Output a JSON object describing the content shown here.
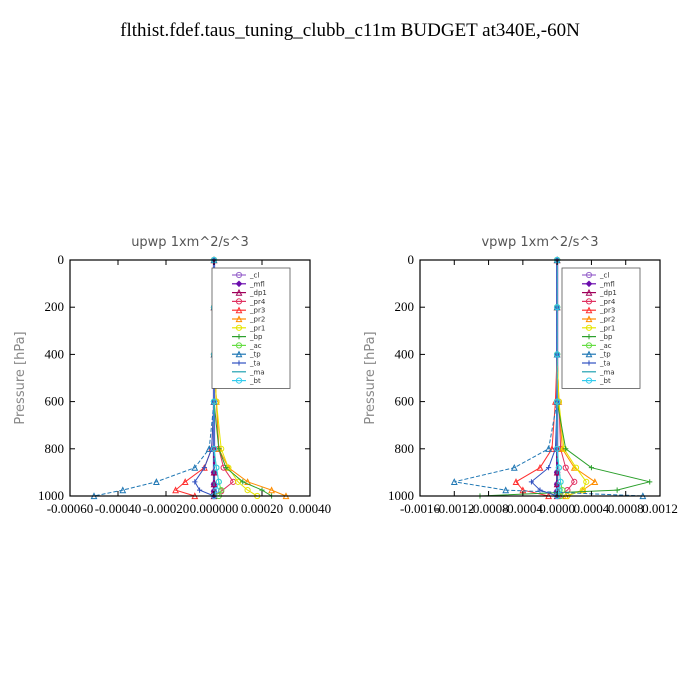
{
  "page_title": "flthist.fdef.taus_tuning_clubb_c11m  BUDGET at340E,-60N",
  "chart_data": [
    {
      "type": "line",
      "title": "upwp   1xm^2/s^3",
      "ylabel": "Pressure [hPa]",
      "xlim": [
        -0.0006,
        0.0004
      ],
      "ylim": [
        1000,
        0
      ],
      "x_ticks": [
        "-0.00060",
        "-0.00040",
        "-0.00020",
        "0.000000",
        "0.00020",
        "0.00040"
      ],
      "x_tick_values": [
        -0.0006,
        -0.0004,
        -0.0002,
        0.0,
        0.0002,
        0.0004
      ],
      "y_ticks": [
        "0",
        "200",
        "400",
        "600",
        "800",
        "1000"
      ],
      "y_tick_values": [
        0,
        200,
        400,
        600,
        800,
        1000
      ],
      "legend_position": "top-right",
      "series": [
        {
          "name": "_cl",
          "color": "#9966cc",
          "marker": "circle",
          "x": [
            0,
            0,
            0,
            0,
            0,
            0,
            0,
            0,
            0
          ],
          "y": [
            0,
            200,
            400,
            600,
            800,
            900,
            950,
            980,
            1000
          ]
        },
        {
          "name": "_mfl",
          "color": "#6a0dad",
          "marker": "diamond",
          "x": [
            0,
            0,
            0,
            0,
            0,
            0,
            0,
            0,
            0
          ],
          "y": [
            0,
            200,
            400,
            600,
            800,
            900,
            950,
            980,
            1000
          ]
        },
        {
          "name": "_dp1",
          "color": "#a0005a",
          "marker": "triangle",
          "x": [
            0,
            0,
            0,
            0,
            0,
            0,
            0,
            0,
            0
          ],
          "y": [
            0,
            200,
            400,
            600,
            800,
            900,
            950,
            980,
            1000
          ]
        },
        {
          "name": "_pr4",
          "color": "#e03060",
          "marker": "circle",
          "x": [
            0,
            0,
            0,
            1e-05,
            2e-05,
            4e-05,
            8e-05,
            3e-05,
            0
          ],
          "y": [
            0,
            200,
            400,
            600,
            800,
            880,
            940,
            980,
            1000
          ]
        },
        {
          "name": "_pr3",
          "color": "#ff3030",
          "marker": "triangle",
          "x": [
            0,
            0,
            0,
            0,
            -1e-05,
            -4e-05,
            -0.00012,
            -0.00016,
            -8e-05
          ],
          "y": [
            0,
            200,
            400,
            600,
            800,
            880,
            940,
            975,
            1000
          ]
        },
        {
          "name": "_pr2",
          "color": "#ff8c00",
          "marker": "triangle",
          "x": [
            0,
            0,
            0,
            1e-05,
            2e-05,
            6e-05,
            0.00014,
            0.00024,
            0.0003
          ],
          "y": [
            0,
            200,
            400,
            600,
            800,
            880,
            940,
            975,
            1000
          ]
        },
        {
          "name": "_pr1",
          "color": "#e6e600",
          "marker": "circle",
          "x": [
            0,
            0,
            0,
            1e-05,
            3e-05,
            6e-05,
            0.0001,
            0.00014,
            0.00018
          ],
          "y": [
            0,
            200,
            400,
            600,
            800,
            880,
            940,
            975,
            1000
          ]
        },
        {
          "name": "_bp",
          "color": "#2ca02c",
          "marker": "plus",
          "x": [
            0,
            0,
            0,
            0,
            2e-05,
            5e-05,
            0.00012,
            0.0002,
            0.00024
          ],
          "y": [
            0,
            200,
            400,
            600,
            800,
            880,
            940,
            975,
            1000
          ]
        },
        {
          "name": "_ac",
          "color": "#66dd44",
          "marker": "circle",
          "x": [
            0,
            0,
            0,
            0,
            0,
            1e-05,
            2e-05,
            3e-05,
            2e-05
          ],
          "y": [
            0,
            200,
            400,
            600,
            800,
            880,
            940,
            975,
            1000
          ]
        },
        {
          "name": "_tp",
          "color": "#1f77b4",
          "marker": "triangle",
          "x": [
            0,
            0,
            0,
            0,
            -2e-05,
            -8e-05,
            -0.00024,
            -0.00038,
            -0.0005
          ],
          "y": [
            0,
            200,
            400,
            600,
            800,
            880,
            940,
            975,
            1000
          ]
        },
        {
          "name": "_ta",
          "color": "#3050c0",
          "marker": "plus",
          "x": [
            0,
            0,
            0,
            0,
            -1e-05,
            -4e-05,
            -8e-05,
            -6e-05,
            0
          ],
          "y": [
            0,
            200,
            400,
            600,
            800,
            880,
            940,
            975,
            1000
          ]
        },
        {
          "name": "_ma",
          "color": "#20a0b0",
          "marker": "none",
          "x": [
            0,
            0,
            0,
            0,
            0,
            0,
            0,
            0,
            0
          ],
          "y": [
            0,
            200,
            400,
            600,
            800,
            880,
            940,
            975,
            1000
          ]
        },
        {
          "name": "_bt",
          "color": "#33ccee",
          "marker": "circle",
          "x": [
            0,
            0,
            0,
            0,
            0,
            1e-05,
            2e-05,
            1e-05,
            0
          ],
          "y": [
            0,
            200,
            400,
            600,
            800,
            880,
            940,
            975,
            1000
          ]
        }
      ]
    },
    {
      "type": "line",
      "title": "vpwp   1xm^2/s^3",
      "ylabel": "Pressure [hPa]",
      "xlim": [
        -0.0016,
        0.0012
      ],
      "ylim": [
        1000,
        0
      ],
      "x_ticks": [
        "-0.0016",
        "-0.0012",
        "-0.0008",
        "-0.0004",
        "0.0000",
        "0.0004",
        "0.0008",
        "0.0012"
      ],
      "x_tick_values": [
        -0.0016,
        -0.0012,
        -0.0008,
        -0.0004,
        0.0,
        0.0004,
        0.0008,
        0.0012
      ],
      "y_ticks": [
        "0",
        "200",
        "400",
        "600",
        "800",
        "1000"
      ],
      "y_tick_values": [
        0,
        200,
        400,
        600,
        800,
        1000
      ],
      "legend_position": "top-right",
      "series": [
        {
          "name": "_cl",
          "color": "#9966cc",
          "marker": "circle",
          "x": [
            0,
            0,
            0,
            0,
            0,
            0,
            0,
            0,
            0
          ],
          "y": [
            0,
            200,
            400,
            600,
            800,
            900,
            950,
            980,
            1000
          ]
        },
        {
          "name": "_mfl",
          "color": "#6a0dad",
          "marker": "diamond",
          "x": [
            0,
            0,
            0,
            0,
            0,
            0,
            0,
            0,
            0
          ],
          "y": [
            0,
            200,
            400,
            600,
            800,
            900,
            950,
            980,
            1000
          ]
        },
        {
          "name": "_dp1",
          "color": "#a0005a",
          "marker": "triangle",
          "x": [
            0,
            0,
            0,
            0,
            0,
            0,
            0,
            0,
            0
          ],
          "y": [
            0,
            200,
            400,
            600,
            800,
            900,
            950,
            980,
            1000
          ]
        },
        {
          "name": "_pr4",
          "color": "#e03060",
          "marker": "circle",
          "x": [
            0,
            0,
            0,
            2e-05,
            4e-05,
            0.0001,
            0.0002,
            0.00012,
            2e-05
          ],
          "y": [
            0,
            200,
            400,
            600,
            800,
            880,
            940,
            975,
            1000
          ]
        },
        {
          "name": "_pr3",
          "color": "#ff3030",
          "marker": "triangle",
          "x": [
            0,
            0,
            0,
            -2e-05,
            -6e-05,
            -0.0002,
            -0.00048,
            -0.0004,
            -0.0001
          ],
          "y": [
            0,
            200,
            400,
            600,
            800,
            880,
            940,
            975,
            1000
          ]
        },
        {
          "name": "_pr2",
          "color": "#ff8c00",
          "marker": "triangle",
          "x": [
            0,
            0,
            0,
            2e-05,
            6e-05,
            0.0002,
            0.00044,
            0.0003,
            0.0001
          ],
          "y": [
            0,
            200,
            400,
            600,
            800,
            880,
            940,
            975,
            1000
          ]
        },
        {
          "name": "_pr1",
          "color": "#e6e600",
          "marker": "circle",
          "x": [
            0,
            0,
            0,
            2e-05,
            8e-05,
            0.00022,
            0.00034,
            0.0003,
            0.00012
          ],
          "y": [
            0,
            200,
            400,
            600,
            800,
            880,
            940,
            975,
            1000
          ]
        },
        {
          "name": "_bp",
          "color": "#2ca02c",
          "marker": "plus",
          "x": [
            0,
            0,
            0,
            0,
            0.0001,
            0.0004,
            0.00108,
            0.0007,
            -0.0009
          ],
          "y": [
            0,
            200,
            400,
            600,
            800,
            880,
            940,
            975,
            1000
          ]
        },
        {
          "name": "_ac",
          "color": "#66dd44",
          "marker": "circle",
          "x": [
            0,
            0,
            0,
            0,
            0,
            2e-05,
            4e-05,
            6e-05,
            4e-05
          ],
          "y": [
            0,
            200,
            400,
            600,
            800,
            880,
            940,
            975,
            1000
          ]
        },
        {
          "name": "_tp",
          "color": "#1f77b4",
          "marker": "triangle",
          "x": [
            0,
            0,
            0,
            0,
            -0.0001,
            -0.0005,
            -0.0012,
            -0.0006,
            0.001
          ],
          "y": [
            0,
            200,
            400,
            600,
            800,
            880,
            940,
            975,
            1000
          ]
        },
        {
          "name": "_ta",
          "color": "#3050c0",
          "marker": "plus",
          "x": [
            0,
            0,
            0,
            0,
            -2e-05,
            -0.0001,
            -0.0003,
            -0.0002,
            0
          ],
          "y": [
            0,
            200,
            400,
            600,
            800,
            880,
            940,
            975,
            1000
          ]
        },
        {
          "name": "_ma",
          "color": "#20a0b0",
          "marker": "none",
          "x": [
            0,
            0,
            0,
            0,
            0,
            0,
            0,
            0,
            0
          ],
          "y": [
            0,
            200,
            400,
            600,
            800,
            880,
            940,
            975,
            1000
          ]
        },
        {
          "name": "_bt",
          "color": "#33ccee",
          "marker": "circle",
          "x": [
            0,
            0,
            0,
            0,
            0,
            2e-05,
            4e-05,
            2e-05,
            0
          ],
          "y": [
            0,
            200,
            400,
            600,
            800,
            880,
            940,
            975,
            1000
          ]
        }
      ]
    }
  ]
}
